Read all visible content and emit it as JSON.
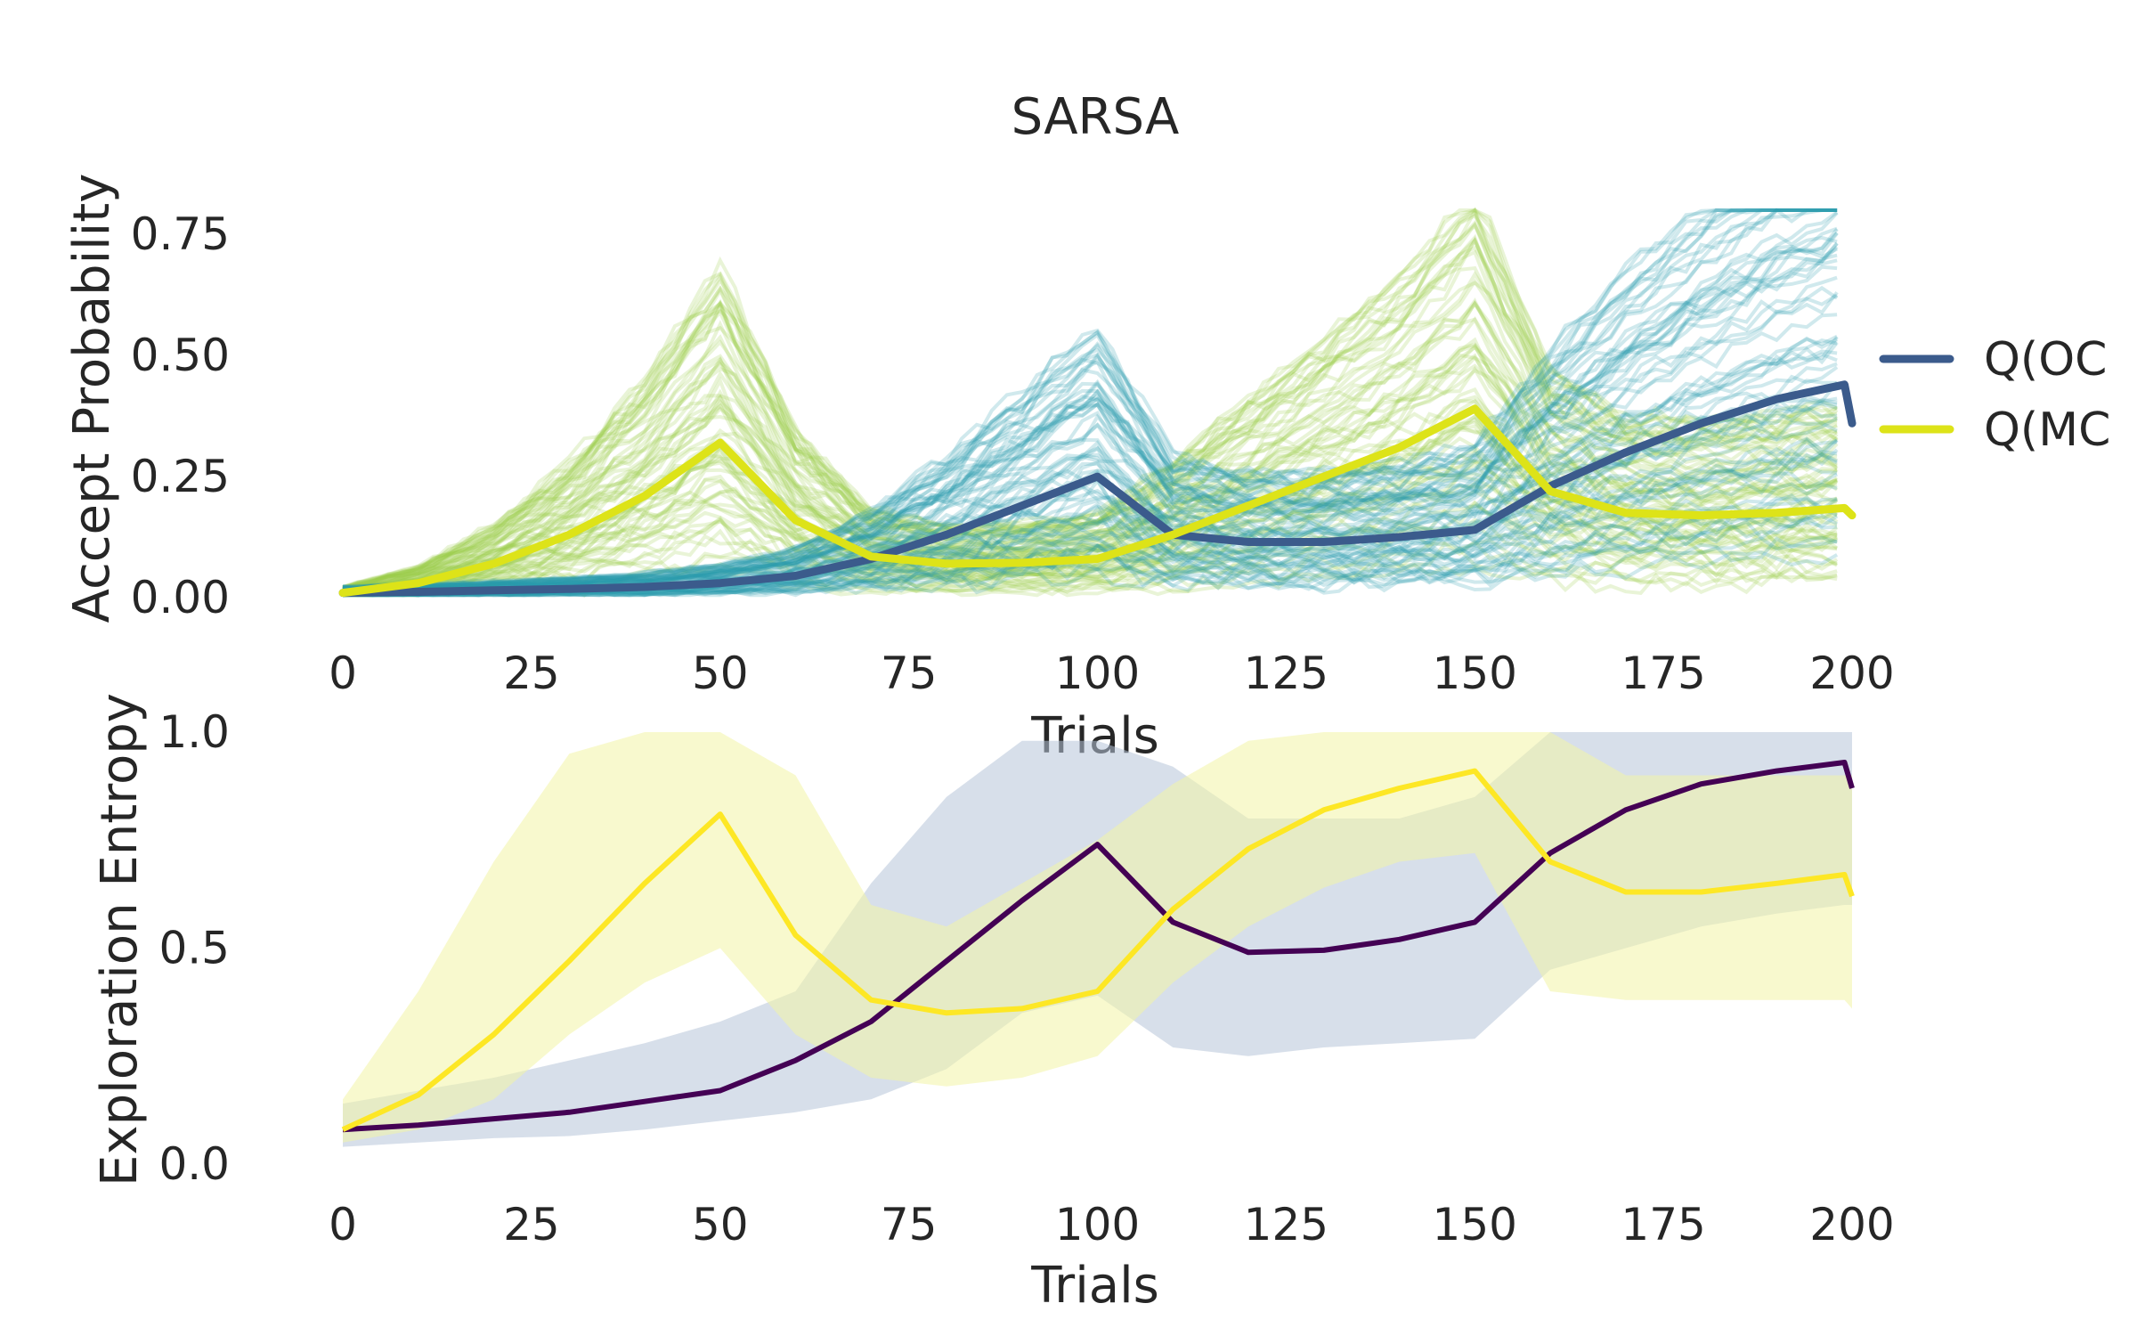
{
  "chart_data": [
    {
      "type": "line",
      "title": "SARSA",
      "xlabel": "Trials",
      "ylabel": "Accept Probability",
      "xlim": [
        0,
        200
      ],
      "ylim": [
        0,
        0.8
      ],
      "xticks": [
        "0",
        "25",
        "50",
        "75",
        "100",
        "125",
        "150",
        "175",
        "200"
      ],
      "yticks": [
        "0.00",
        "0.25",
        "0.50",
        "0.75"
      ],
      "grid": false,
      "legend": "right",
      "x": [
        0,
        10,
        20,
        30,
        40,
        50,
        60,
        70,
        80,
        90,
        100,
        110,
        120,
        130,
        140,
        150,
        160,
        170,
        180,
        190,
        199,
        200
      ],
      "series": [
        {
          "name": "Q(OC",
          "color": "#3b5b8c",
          "values": [
            0.01,
            0.012,
            0.015,
            0.018,
            0.022,
            0.03,
            0.045,
            0.08,
            0.13,
            0.19,
            0.25,
            0.13,
            0.115,
            0.115,
            0.125,
            0.14,
            0.23,
            0.3,
            0.36,
            0.41,
            0.44,
            0.36
          ]
        },
        {
          "name": "Q(MC",
          "color": "#dde318",
          "values": [
            0.01,
            0.03,
            0.07,
            0.13,
            0.21,
            0.32,
            0.16,
            0.085,
            0.07,
            0.072,
            0.08,
            0.13,
            0.19,
            0.25,
            0.31,
            0.39,
            0.22,
            0.175,
            0.17,
            0.175,
            0.185,
            0.17
          ]
        }
      ],
      "individual_runs": [
        {
          "group": "Q(OC",
          "color": "#2a9bae",
          "description_peaks_at": [
            100,
            200
          ],
          "upper_envelope": [
            0.02,
            0.05,
            0.1,
            0.2,
            0.35,
            0.45,
            0.6,
            0.7,
            0.82
          ]
        },
        {
          "group": "Q(MC",
          "color": "#9ccc4a",
          "description_peaks_at": [
            50,
            150
          ],
          "upper_envelope": [
            0.02,
            0.3,
            0.65,
            0.5,
            0.4,
            0.7,
            0.8,
            0.5,
            0.4
          ]
        }
      ]
    },
    {
      "type": "line",
      "xlabel": "Trials",
      "ylabel": "Exploration Entropy",
      "ylabel_color": "#3b5b8c",
      "xlim": [
        0,
        200
      ],
      "ylim": [
        0,
        1.0
      ],
      "xticks": [
        "0",
        "25",
        "50",
        "75",
        "100",
        "125",
        "150",
        "175",
        "200"
      ],
      "yticks": [
        "0.0",
        "0.5",
        "1.0"
      ],
      "grid": false,
      "x": [
        0,
        10,
        20,
        30,
        40,
        50,
        60,
        70,
        80,
        90,
        100,
        110,
        120,
        130,
        140,
        150,
        160,
        170,
        180,
        190,
        199,
        200
      ],
      "series": [
        {
          "color": "#440154",
          "band_color": "#b7c5d9",
          "values": [
            0.08,
            0.09,
            0.105,
            0.12,
            0.145,
            0.17,
            0.24,
            0.33,
            0.47,
            0.61,
            0.74,
            0.56,
            0.49,
            0.495,
            0.52,
            0.56,
            0.72,
            0.82,
            0.88,
            0.91,
            0.93,
            0.87
          ],
          "lower": [
            0.04,
            0.05,
            0.06,
            0.065,
            0.08,
            0.1,
            0.12,
            0.15,
            0.22,
            0.35,
            0.39,
            0.27,
            0.25,
            0.27,
            0.28,
            0.29,
            0.45,
            0.5,
            0.55,
            0.58,
            0.6,
            0.6
          ],
          "upper": [
            0.14,
            0.17,
            0.2,
            0.24,
            0.28,
            0.33,
            0.4,
            0.65,
            0.85,
            0.98,
            0.98,
            0.92,
            0.8,
            0.8,
            0.8,
            0.85,
            1.0,
            1.0,
            1.0,
            1.0,
            1.0,
            1.0
          ]
        },
        {
          "color": "#fde725",
          "band_color": "#f3f4a6",
          "values": [
            0.08,
            0.16,
            0.3,
            0.47,
            0.65,
            0.81,
            0.53,
            0.38,
            0.35,
            0.36,
            0.4,
            0.59,
            0.73,
            0.82,
            0.87,
            0.91,
            0.7,
            0.63,
            0.63,
            0.65,
            0.67,
            0.62
          ],
          "lower": [
            0.05,
            0.08,
            0.15,
            0.3,
            0.42,
            0.5,
            0.3,
            0.2,
            0.18,
            0.2,
            0.25,
            0.42,
            0.55,
            0.64,
            0.7,
            0.72,
            0.4,
            0.38,
            0.38,
            0.38,
            0.38,
            0.36
          ],
          "upper": [
            0.15,
            0.4,
            0.7,
            0.95,
            1.0,
            1.0,
            0.9,
            0.6,
            0.55,
            0.65,
            0.75,
            0.88,
            0.98,
            1.0,
            1.0,
            1.0,
            1.0,
            0.9,
            0.9,
            0.9,
            0.9,
            0.9
          ]
        }
      ]
    }
  ]
}
